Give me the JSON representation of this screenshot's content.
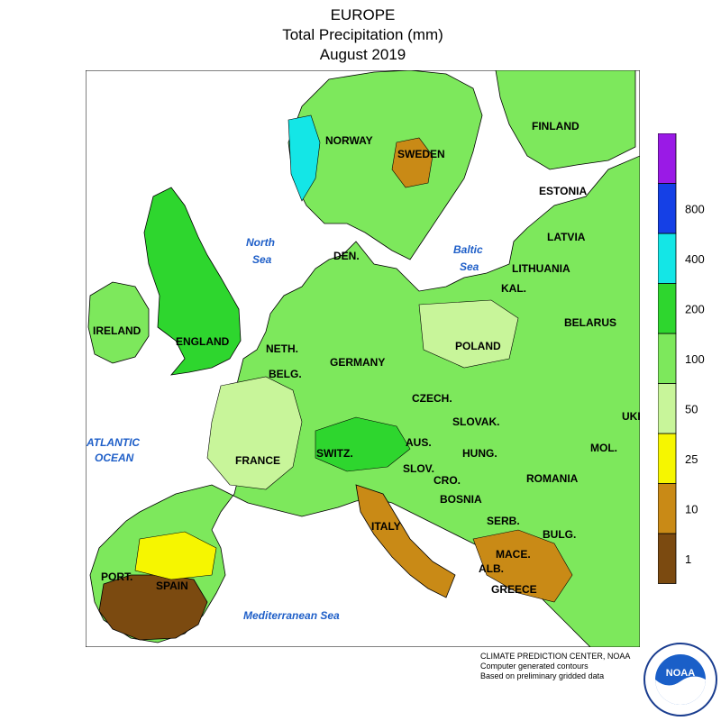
{
  "title": {
    "line1": "EUROPE",
    "line2": "Total Precipitation (mm)",
    "line3": "August 2019"
  },
  "countries": {
    "norway": "NORWAY",
    "sweden": "SWEDEN",
    "finland": "FINLAND",
    "estonia": "ESTONIA",
    "latvia": "LATVIA",
    "lithuania": "LITHUANIA",
    "kal": "KAL.",
    "belarus": "BELARUS",
    "den": "DEN.",
    "ireland": "IRELAND",
    "england": "ENGLAND",
    "neth": "NETH.",
    "belg": "BELG.",
    "germany": "GERMANY",
    "poland": "POLAND",
    "czech": "CZECH.",
    "slovak": "SLOVAK.",
    "ukr": "UKR.",
    "mol": "MOL.",
    "aus": "AUS.",
    "switz": "SWITZ.",
    "hung": "HUNG.",
    "france": "FRANCE",
    "slov": "SLOV.",
    "cro": "CRO.",
    "bosnia": "BOSNIA",
    "romania": "ROMANIA",
    "serb": "SERB.",
    "bulg": "BULG.",
    "italy": "ITALY",
    "mace": "MACE.",
    "alb": "ALB.",
    "greece": "GREECE",
    "port": "PORT.",
    "spain": "SPAIN"
  },
  "seas": {
    "north_1": "North",
    "north_2": "Sea",
    "baltic_1": "Baltic",
    "baltic_2": "Sea",
    "atlantic_1": "ATLANTIC",
    "atlantic_2": "OCEAN",
    "med": "Mediterranean Sea"
  },
  "legend": {
    "bins": [
      {
        "color": "#7b4a10"
      },
      {
        "color": "#c98a16"
      },
      {
        "color": "#f6f600"
      },
      {
        "color": "#c8f59a"
      },
      {
        "color": "#7de85c"
      },
      {
        "color": "#2ed62e"
      },
      {
        "color": "#14e6e6"
      },
      {
        "color": "#1540e6"
      },
      {
        "color": "#9a1ae6"
      }
    ],
    "labels": [
      "1",
      "10",
      "25",
      "50",
      "100",
      "200",
      "400",
      "800"
    ]
  },
  "credits": {
    "line1": "CLIMATE PREDICTION CENTER, NOAA",
    "line2": "Computer generated contours",
    "line3": "Based on preliminary gridded data"
  },
  "logo": {
    "text": "NOAA"
  }
}
